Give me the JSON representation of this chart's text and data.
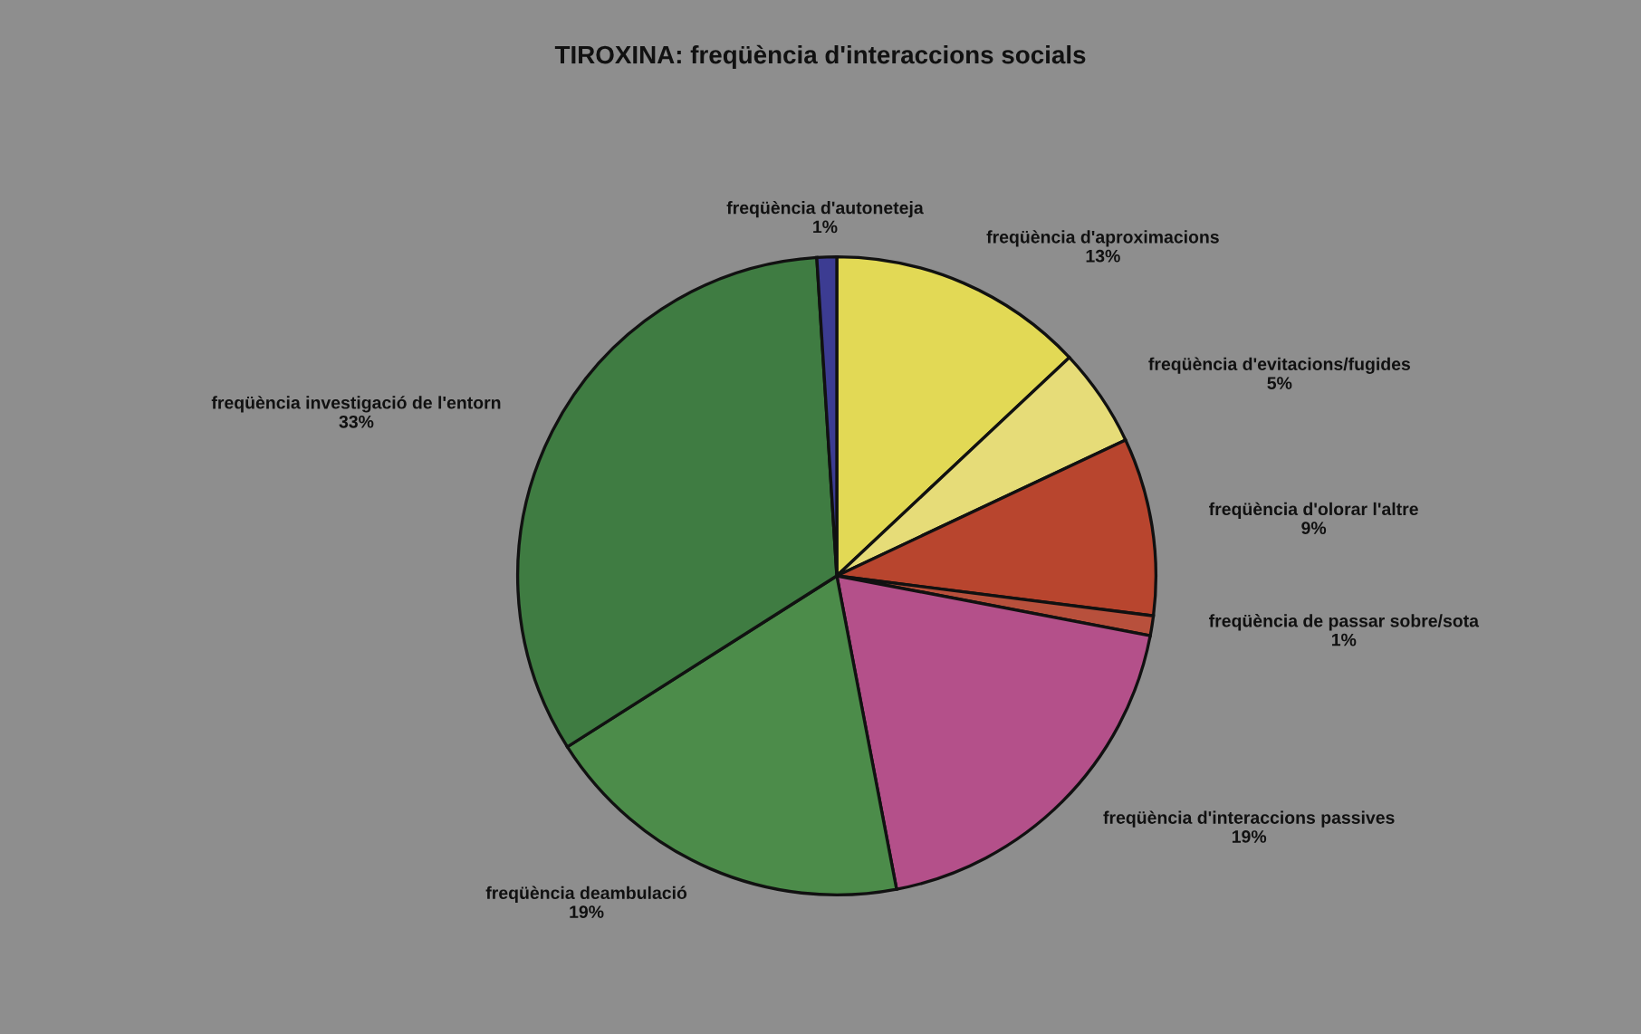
{
  "chart_data": {
    "type": "pie",
    "title": "TIROXINA: freqüència d'interaccions socials",
    "categories": [
      "freqüència d'aproximacions",
      "freqüència d'evitacions/fugides",
      "freqüència d'olorar l'altre",
      "freqüència de passar sobre/sota",
      "freqüència d'interaccions passives",
      "freqüència deambulació",
      "freqüència investigació de l'entorn",
      "freqüència d'autoneteja"
    ],
    "values": [
      13,
      5,
      9,
      1,
      19,
      19,
      33,
      1
    ],
    "value_labels": [
      "13%",
      "5%",
      "9%",
      "1%",
      "19%",
      "19%",
      "33%",
      "1%"
    ],
    "colors": [
      "#e2d955",
      "#e6dc78",
      "#b8452e",
      "#b8503c",
      "#b4508a",
      "#4c8c4a",
      "#3f7c42",
      "#3c3c92"
    ],
    "legend": false
  }
}
